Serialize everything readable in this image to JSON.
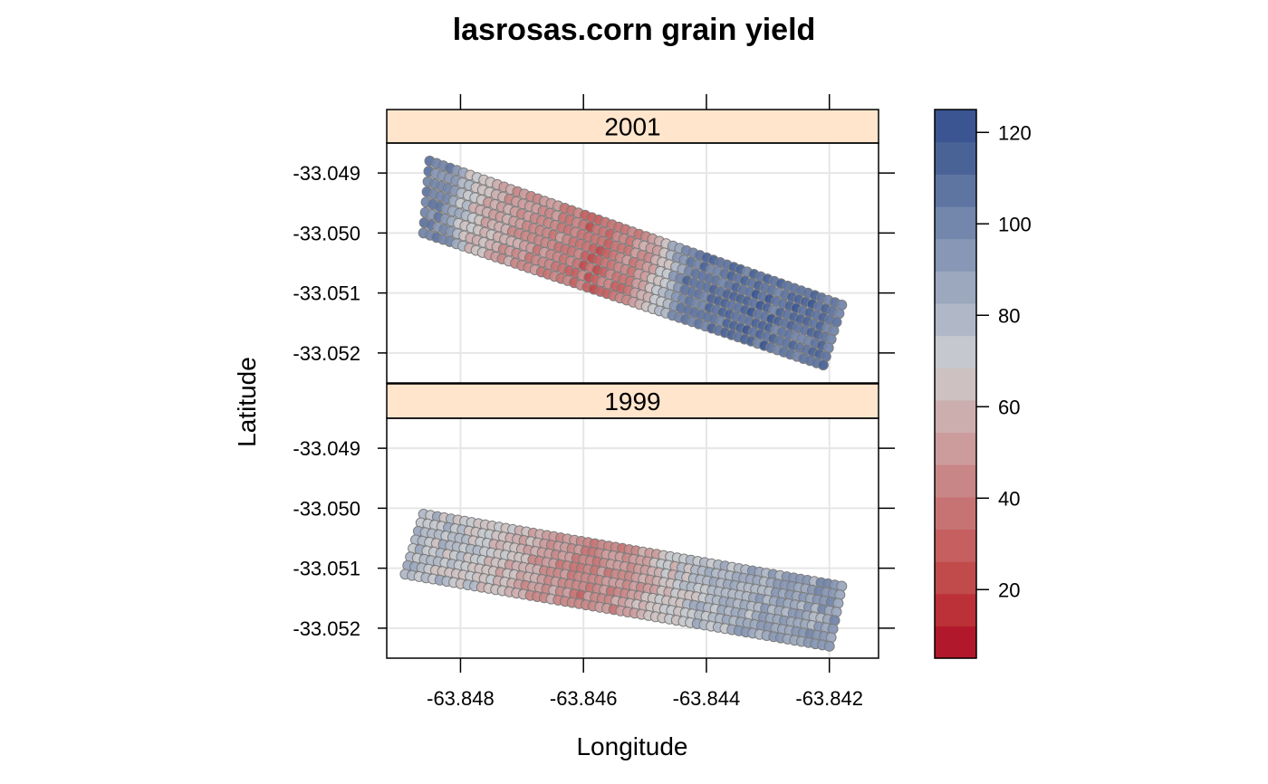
{
  "chart_data": {
    "type": "scatter",
    "title": "lasrosas.corn grain yield",
    "xlabel": "Longitude",
    "ylabel": "Latitude",
    "xlim": [
      -63.8492,
      -63.8412
    ],
    "ylim_per_panel": [
      -33.0525,
      -33.0485
    ],
    "x_ticks": [
      -63.848,
      -63.846,
      -63.844,
      -63.842
    ],
    "x_tick_labels": [
      "-63.848",
      "-63.846",
      "-63.844",
      "-63.842"
    ],
    "y_ticks": [
      -33.049,
      -33.05,
      -33.051,
      -33.052
    ],
    "y_tick_labels": [
      "-33.049",
      "-33.050",
      "-33.051",
      "-33.052"
    ],
    "grid": true,
    "panels": [
      {
        "year": "2001",
        "field_corners": [
          [
            -63.8485,
            -33.0488
          ],
          [
            -63.8418,
            -33.0512
          ],
          [
            -63.8421,
            -33.0522
          ],
          [
            -63.8486,
            -33.05
          ]
        ],
        "yield_profile_along_field": [
          {
            "pos": 0.0,
            "yield": 105
          },
          {
            "pos": 0.06,
            "yield": 95
          },
          {
            "pos": 0.1,
            "yield": 70
          },
          {
            "pos": 0.16,
            "yield": 55
          },
          {
            "pos": 0.3,
            "yield": 45
          },
          {
            "pos": 0.42,
            "yield": 30
          },
          {
            "pos": 0.52,
            "yield": 45
          },
          {
            "pos": 0.58,
            "yield": 68
          },
          {
            "pos": 0.64,
            "yield": 105
          },
          {
            "pos": 0.8,
            "yield": 112
          },
          {
            "pos": 1.0,
            "yield": 108
          }
        ]
      },
      {
        "year": "1999",
        "field_corners": [
          [
            -63.8486,
            -33.0501
          ],
          [
            -63.8418,
            -33.0513
          ],
          [
            -63.842,
            -33.0523
          ],
          [
            -63.8489,
            -33.0511
          ]
        ],
        "yield_profile_along_field": [
          {
            "pos": 0.0,
            "yield": 80
          },
          {
            "pos": 0.15,
            "yield": 70
          },
          {
            "pos": 0.3,
            "yield": 52
          },
          {
            "pos": 0.42,
            "yield": 40
          },
          {
            "pos": 0.52,
            "yield": 50
          },
          {
            "pos": 0.65,
            "yield": 75
          },
          {
            "pos": 0.82,
            "yield": 85
          },
          {
            "pos": 1.0,
            "yield": 92
          }
        ]
      }
    ],
    "colorbar": {
      "min": 5,
      "max": 125,
      "levels": 16,
      "ticks": [
        20,
        40,
        60,
        80,
        100,
        120
      ],
      "tick_labels": [
        "20",
        "40",
        "60",
        "80",
        "100",
        "120"
      ],
      "colors": [
        "#b2182b",
        "#bb3137",
        "#c14a4b",
        "#c65f60",
        "#c87373",
        "#c98686",
        "#cc9b9c",
        "#cdaeaf",
        "#cdc1c1",
        "#c5c8ce",
        "#b0b8c7",
        "#9ba8be",
        "#8797b5",
        "#7386ab",
        "#5e74a1",
        "#4a6397",
        "#3a5591"
      ]
    },
    "strip_color": "#ffe5cc"
  }
}
